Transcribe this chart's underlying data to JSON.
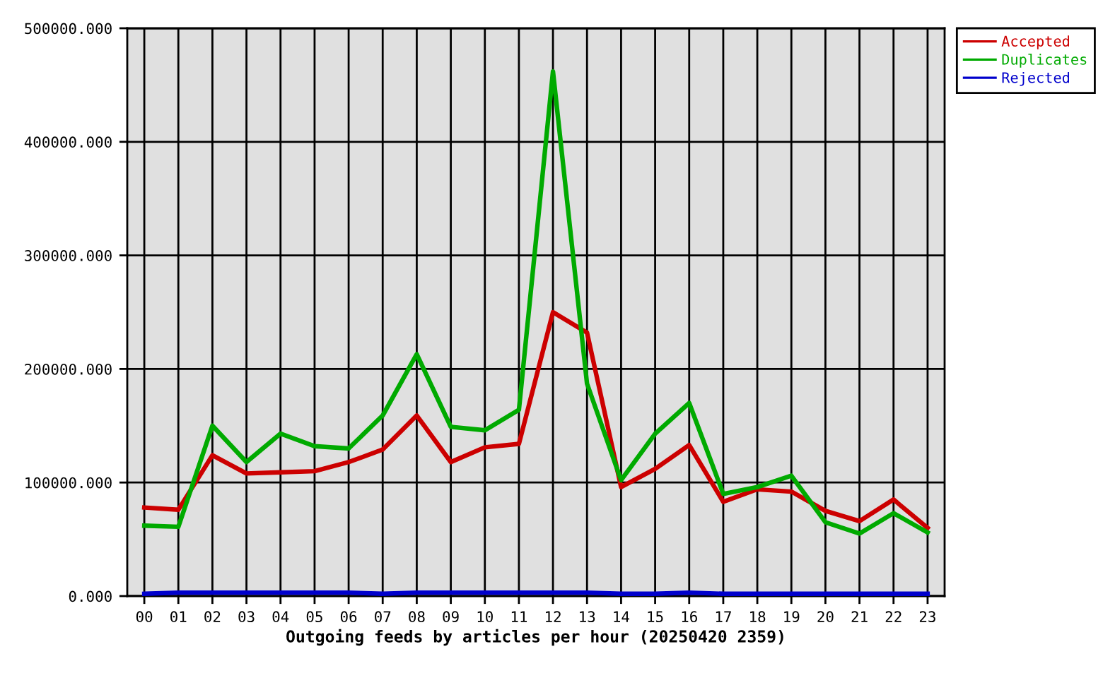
{
  "chart_data": {
    "type": "line",
    "xlabel": "Outgoing feeds by articles per hour (20250420 2359)",
    "categories": [
      "00",
      "01",
      "02",
      "03",
      "04",
      "05",
      "06",
      "07",
      "08",
      "09",
      "10",
      "11",
      "12",
      "13",
      "14",
      "15",
      "16",
      "17",
      "18",
      "19",
      "20",
      "21",
      "22",
      "23"
    ],
    "series": [
      {
        "name": "Accepted",
        "color": "#cc0000",
        "values": [
          78000,
          76000,
          124000,
          108000,
          109000,
          110000,
          118000,
          129000,
          159000,
          118000,
          131000,
          134000,
          250000,
          232000,
          96000,
          112000,
          133000,
          83000,
          94000,
          92000,
          75000,
          66000,
          85000,
          60000
        ]
      },
      {
        "name": "Duplicates",
        "color": "#00aa00",
        "values": [
          62000,
          61000,
          150000,
          118000,
          143000,
          132000,
          130000,
          159000,
          213000,
          149000,
          146000,
          164000,
          462000,
          187000,
          102000,
          143000,
          170000,
          90000,
          96000,
          106000,
          65000,
          55000,
          73000,
          56000
        ]
      },
      {
        "name": "Rejected",
        "color": "#0000cc",
        "values": [
          2000,
          3000,
          3000,
          3000,
          3000,
          3000,
          3000,
          2000,
          3000,
          3000,
          3000,
          3000,
          3000,
          3000,
          2000,
          2000,
          3000,
          2000,
          2000,
          2000,
          2000,
          2000,
          2000,
          2000
        ]
      }
    ],
    "ylim": [
      0,
      500000
    ],
    "yticks": [
      {
        "value": 0,
        "label": "0.000"
      },
      {
        "value": 100000,
        "label": "100000.000"
      },
      {
        "value": 200000,
        "label": "200000.000"
      },
      {
        "value": 300000,
        "label": "300000.000"
      },
      {
        "value": 400000,
        "label": "400000.000"
      },
      {
        "value": 500000,
        "label": "500000.000"
      }
    ],
    "grid": true,
    "legend": "top right",
    "line_style": "solid"
  }
}
